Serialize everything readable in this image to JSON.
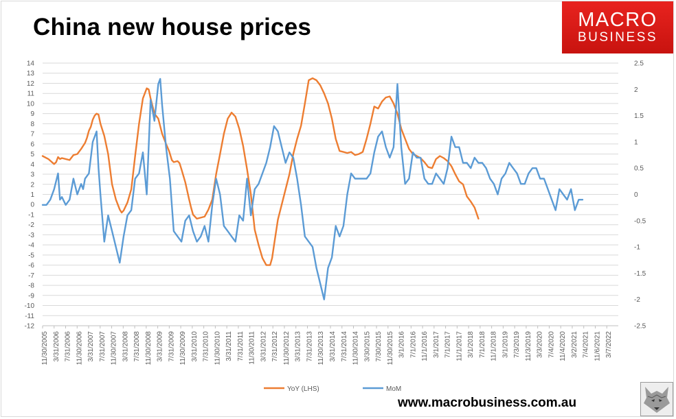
{
  "title": "China new house prices",
  "logo": {
    "line1": "MACRO",
    "line2": "BUSINESS",
    "color": "#e3201b"
  },
  "footer": {
    "website": "www.macrobusiness.com.au",
    "logo_icon": "wolf-head-icon"
  },
  "chart_data": {
    "type": "line",
    "title": "China new house prices",
    "x_tick_labels": [
      "11/30/2005",
      "3/31/2006",
      "7/31/2006",
      "11/30/2006",
      "3/31/2007",
      "7/31/2007",
      "11/30/2007",
      "3/31/2008",
      "7/31/2008",
      "11/30/2008",
      "3/31/2009",
      "7/31/2009",
      "11/30/2009",
      "3/31/2010",
      "7/31/2010",
      "11/30/2010",
      "3/31/2011",
      "7/31/2011",
      "11/30/2011",
      "3/31/2012",
      "7/31/2012",
      "11/30/2012",
      "3/31/2013",
      "7/31/2013",
      "11/30/2013",
      "3/31/2014",
      "7/31/2014",
      "11/30/2014",
      "3/30/2015",
      "7/30/2015",
      "11/30/2015",
      "3/1/2016",
      "7/1/2016",
      "11/1/2016",
      "3/1/2017",
      "7/1/2017",
      "11/1/2017",
      "3/1/2018",
      "7/1/2018",
      "11/1/2018",
      "3/1/2019",
      "7/3/2019",
      "11/3/2019",
      "3/3/2020",
      "7/4/2020",
      "11/4/2020",
      "3/2/2021",
      "7/4/2021",
      "11/6/2021",
      "3/7/2022"
    ],
    "y_left": {
      "min": -12,
      "max": 14,
      "step": 1
    },
    "y_right": {
      "min": -2.5,
      "max": 2.5,
      "step": 0.5
    },
    "grid": true,
    "legend_position": "bottom",
    "series": [
      {
        "name": "YoY (LHS)",
        "axis": "left",
        "color": "#ed7d31",
        "points": [
          [
            0,
            4.8
          ],
          [
            1.5,
            4.5
          ],
          [
            3,
            4.0
          ],
          [
            3.5,
            4.2
          ],
          [
            4,
            4.7
          ],
          [
            4.5,
            4.5
          ],
          [
            5,
            4.6
          ],
          [
            6,
            4.5
          ],
          [
            7,
            4.4
          ],
          [
            8,
            4.9
          ],
          [
            9,
            5.0
          ],
          [
            10,
            5.5
          ],
          [
            11,
            6.1
          ],
          [
            11.5,
            6.6
          ],
          [
            12,
            7.3
          ],
          [
            12.5,
            7.7
          ],
          [
            13,
            8.4
          ],
          [
            13.5,
            8.8
          ],
          [
            14,
            9.0
          ],
          [
            14.5,
            8.9
          ],
          [
            15,
            8.0
          ],
          [
            16,
            6.8
          ],
          [
            17,
            5.0
          ],
          [
            18,
            2.0
          ],
          [
            19,
            0.5
          ],
          [
            20,
            -0.5
          ],
          [
            20.5,
            -0.8
          ],
          [
            21,
            -0.6
          ],
          [
            22,
            0.2
          ],
          [
            23,
            1.5
          ],
          [
            24,
            4.8
          ],
          [
            25,
            8.0
          ],
          [
            26,
            10.5
          ],
          [
            27,
            11.5
          ],
          [
            27.5,
            11.4
          ],
          [
            28,
            10.5
          ],
          [
            29,
            9.0
          ],
          [
            30,
            8.5
          ],
          [
            31,
            7.0
          ],
          [
            32,
            6.0
          ],
          [
            32.8,
            5.3
          ],
          [
            33.5,
            4.4
          ],
          [
            34,
            4.2
          ],
          [
            35,
            4.3
          ],
          [
            35.5,
            4.1
          ],
          [
            36,
            3.5
          ],
          [
            37,
            2.2
          ],
          [
            38,
            0.5
          ],
          [
            38.5,
            -0.3
          ],
          [
            39,
            -1.0
          ],
          [
            40,
            -1.4
          ],
          [
            41,
            -1.3
          ],
          [
            42,
            -1.2
          ],
          [
            43,
            -0.5
          ],
          [
            44,
            0.5
          ],
          [
            45,
            3.0
          ],
          [
            46,
            5.0
          ],
          [
            47,
            7.0
          ],
          [
            48,
            8.5
          ],
          [
            49,
            9.1
          ],
          [
            50,
            8.7
          ],
          [
            51,
            7.5
          ],
          [
            52,
            5.8
          ],
          [
            53,
            3.5
          ],
          [
            54,
            1.0
          ],
          [
            55,
            -2.5
          ],
          [
            56,
            -4.0
          ],
          [
            57,
            -5.3
          ],
          [
            58,
            -6.0
          ],
          [
            59,
            -6.0
          ],
          [
            59.5,
            -5.3
          ],
          [
            60,
            -4.0
          ],
          [
            61,
            -1.5
          ],
          [
            62,
            0.0
          ],
          [
            63,
            1.5
          ],
          [
            64,
            3.0
          ],
          [
            65,
            5.0
          ],
          [
            66,
            6.5
          ],
          [
            67,
            7.8
          ],
          [
            68,
            10.0
          ],
          [
            69,
            12.3
          ],
          [
            70,
            12.5
          ],
          [
            71,
            12.3
          ],
          [
            72,
            11.8
          ],
          [
            73,
            11.0
          ],
          [
            74,
            10.0
          ],
          [
            75,
            8.5
          ],
          [
            76,
            6.5
          ],
          [
            77,
            5.3
          ],
          [
            78,
            5.2
          ],
          [
            79,
            5.1
          ],
          [
            80,
            5.2
          ],
          [
            81,
            4.9
          ],
          [
            82,
            5.0
          ],
          [
            83,
            5.2
          ],
          [
            84,
            6.5
          ],
          [
            85,
            8.0
          ],
          [
            86,
            9.7
          ],
          [
            87,
            9.5
          ],
          [
            88,
            10.2
          ],
          [
            89,
            10.6
          ],
          [
            90,
            10.7
          ],
          [
            91,
            10.0
          ],
          [
            92,
            9.0
          ],
          [
            93,
            7.5
          ],
          [
            94,
            6.5
          ],
          [
            95,
            5.5
          ],
          [
            96,
            5.0
          ],
          [
            97,
            4.8
          ],
          [
            98,
            4.6
          ],
          [
            99,
            4.2
          ],
          [
            100,
            3.7
          ],
          [
            101,
            3.6
          ],
          [
            102,
            4.5
          ],
          [
            103,
            4.8
          ],
          [
            104,
            4.6
          ],
          [
            105,
            4.3
          ],
          [
            106,
            3.8
          ],
          [
            107,
            3.0
          ],
          [
            108,
            2.3
          ],
          [
            109,
            2.0
          ],
          [
            110,
            0.8
          ],
          [
            111,
            0.3
          ],
          [
            112,
            -0.3
          ],
          [
            113,
            -1.4
          ]
        ]
      },
      {
        "name": "MoM",
        "axis": "right",
        "color": "#5b9bd5",
        "points": [
          [
            0,
            -0.2
          ],
          [
            1,
            -0.2
          ],
          [
            2,
            -0.1
          ],
          [
            3,
            0.1
          ],
          [
            4,
            0.4
          ],
          [
            4.5,
            -0.1
          ],
          [
            5,
            -0.05
          ],
          [
            6,
            -0.2
          ],
          [
            7,
            -0.1
          ],
          [
            8,
            0.3
          ],
          [
            9,
            0.0
          ],
          [
            10,
            0.2
          ],
          [
            10.5,
            0.1
          ],
          [
            11,
            0.3
          ],
          [
            12,
            0.4
          ],
          [
            13,
            1.0
          ],
          [
            14,
            1.2
          ],
          [
            14.5,
            0.5
          ],
          [
            15,
            0.0
          ],
          [
            16,
            -0.9
          ],
          [
            17,
            -0.4
          ],
          [
            18,
            -0.7
          ],
          [
            19,
            -1.0
          ],
          [
            20,
            -1.3
          ],
          [
            21,
            -0.8
          ],
          [
            22,
            -0.4
          ],
          [
            23,
            -0.3
          ],
          [
            24,
            0.3
          ],
          [
            25,
            0.4
          ],
          [
            26,
            0.8
          ],
          [
            27,
            0.0
          ],
          [
            28,
            1.8
          ],
          [
            29,
            1.4
          ],
          [
            30,
            2.1
          ],
          [
            30.5,
            2.2
          ],
          [
            31,
            1.7
          ],
          [
            32,
            0.9
          ],
          [
            33,
            0.3
          ],
          [
            34,
            -0.7
          ],
          [
            35,
            -0.8
          ],
          [
            36,
            -0.9
          ],
          [
            37,
            -0.5
          ],
          [
            38,
            -0.4
          ],
          [
            39,
            -0.7
          ],
          [
            40,
            -0.9
          ],
          [
            41,
            -0.8
          ],
          [
            42,
            -0.6
          ],
          [
            43,
            -0.9
          ],
          [
            44,
            -0.2
          ],
          [
            45,
            0.3
          ],
          [
            46,
            0.0
          ],
          [
            47,
            -0.6
          ],
          [
            48,
            -0.7
          ],
          [
            49,
            -0.8
          ],
          [
            50,
            -0.9
          ],
          [
            51,
            -0.4
          ],
          [
            52,
            -0.5
          ],
          [
            53,
            0.3
          ],
          [
            54,
            -0.4
          ],
          [
            55,
            0.1
          ],
          [
            56,
            0.2
          ],
          [
            57,
            0.4
          ],
          [
            58,
            0.6
          ],
          [
            59,
            0.9
          ],
          [
            60,
            1.3
          ],
          [
            61,
            1.2
          ],
          [
            62,
            0.9
          ],
          [
            63,
            0.6
          ],
          [
            64,
            0.8
          ],
          [
            65,
            0.7
          ],
          [
            66,
            0.3
          ],
          [
            67,
            -0.2
          ],
          [
            68,
            -0.8
          ],
          [
            69,
            -0.9
          ],
          [
            70,
            -1.0
          ],
          [
            71,
            -1.4
          ],
          [
            72,
            -1.7
          ],
          [
            73,
            -2.0
          ],
          [
            74,
            -1.4
          ],
          [
            75,
            -1.2
          ],
          [
            76,
            -0.6
          ],
          [
            77,
            -0.8
          ],
          [
            78,
            -0.6
          ],
          [
            79,
            0.0
          ],
          [
            80,
            0.4
          ],
          [
            81,
            0.3
          ],
          [
            82,
            0.3
          ],
          [
            83,
            0.3
          ],
          [
            84,
            0.3
          ],
          [
            85,
            0.4
          ],
          [
            86,
            0.8
          ],
          [
            87,
            1.1
          ],
          [
            88,
            1.2
          ],
          [
            89,
            0.9
          ],
          [
            90,
            0.7
          ],
          [
            91,
            0.9
          ],
          [
            92,
            2.1
          ],
          [
            93,
            0.9
          ],
          [
            94,
            0.2
          ],
          [
            95,
            0.3
          ],
          [
            96,
            0.8
          ],
          [
            97,
            0.7
          ],
          [
            98,
            0.7
          ],
          [
            99,
            0.3
          ],
          [
            100,
            0.2
          ],
          [
            101,
            0.2
          ],
          [
            102,
            0.4
          ],
          [
            103,
            0.3
          ],
          [
            104,
            0.2
          ],
          [
            105,
            0.5
          ],
          [
            106,
            1.1
          ],
          [
            107,
            0.9
          ],
          [
            108,
            0.9
          ],
          [
            109,
            0.6
          ],
          [
            110,
            0.6
          ],
          [
            111,
            0.5
          ],
          [
            112,
            0.7
          ],
          [
            113,
            0.6
          ],
          [
            114,
            0.6
          ],
          [
            115,
            0.5
          ],
          [
            116,
            0.3
          ],
          [
            117,
            0.2
          ],
          [
            118,
            0.0
          ],
          [
            119,
            0.3
          ],
          [
            120,
            0.4
          ],
          [
            121,
            0.6
          ],
          [
            122,
            0.5
          ],
          [
            123,
            0.4
          ],
          [
            124,
            0.2
          ],
          [
            125,
            0.2
          ],
          [
            126,
            0.4
          ],
          [
            127,
            0.5
          ],
          [
            128,
            0.5
          ],
          [
            129,
            0.3
          ],
          [
            130,
            0.3
          ],
          [
            131,
            0.1
          ],
          [
            132,
            -0.1
          ],
          [
            133,
            -0.3
          ],
          [
            134,
            0.1
          ],
          [
            135,
            0.0
          ],
          [
            136,
            -0.1
          ],
          [
            137,
            0.1
          ],
          [
            138,
            -0.3
          ],
          [
            139,
            -0.1
          ],
          [
            140,
            -0.1
          ]
        ]
      }
    ]
  }
}
